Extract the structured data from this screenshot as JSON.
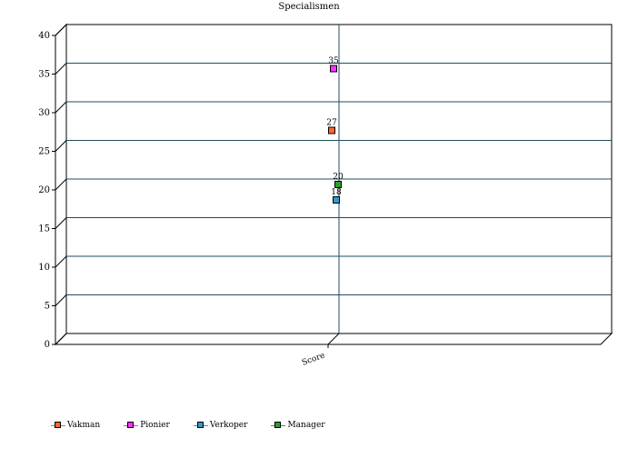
{
  "chart_data": {
    "type": "scatter",
    "title": "Specialismen",
    "categories": [
      "Score"
    ],
    "ylim": [
      0,
      40
    ],
    "yticks": [
      0,
      5,
      10,
      15,
      20,
      25,
      30,
      35,
      40
    ],
    "grid": true,
    "legend_position": "bottom-left",
    "series": [
      {
        "name": "Vakman",
        "values": [
          27
        ],
        "label": "27",
        "color": "#ff6633"
      },
      {
        "name": "Pionier",
        "values": [
          35
        ],
        "label": "35",
        "color": "#ff33ff"
      },
      {
        "name": "Verkoper",
        "values": [
          18
        ],
        "label": "18",
        "color": "#3399cc"
      },
      {
        "name": "Manager",
        "values": [
          20
        ],
        "label": "20",
        "color": "#339933"
      }
    ]
  }
}
